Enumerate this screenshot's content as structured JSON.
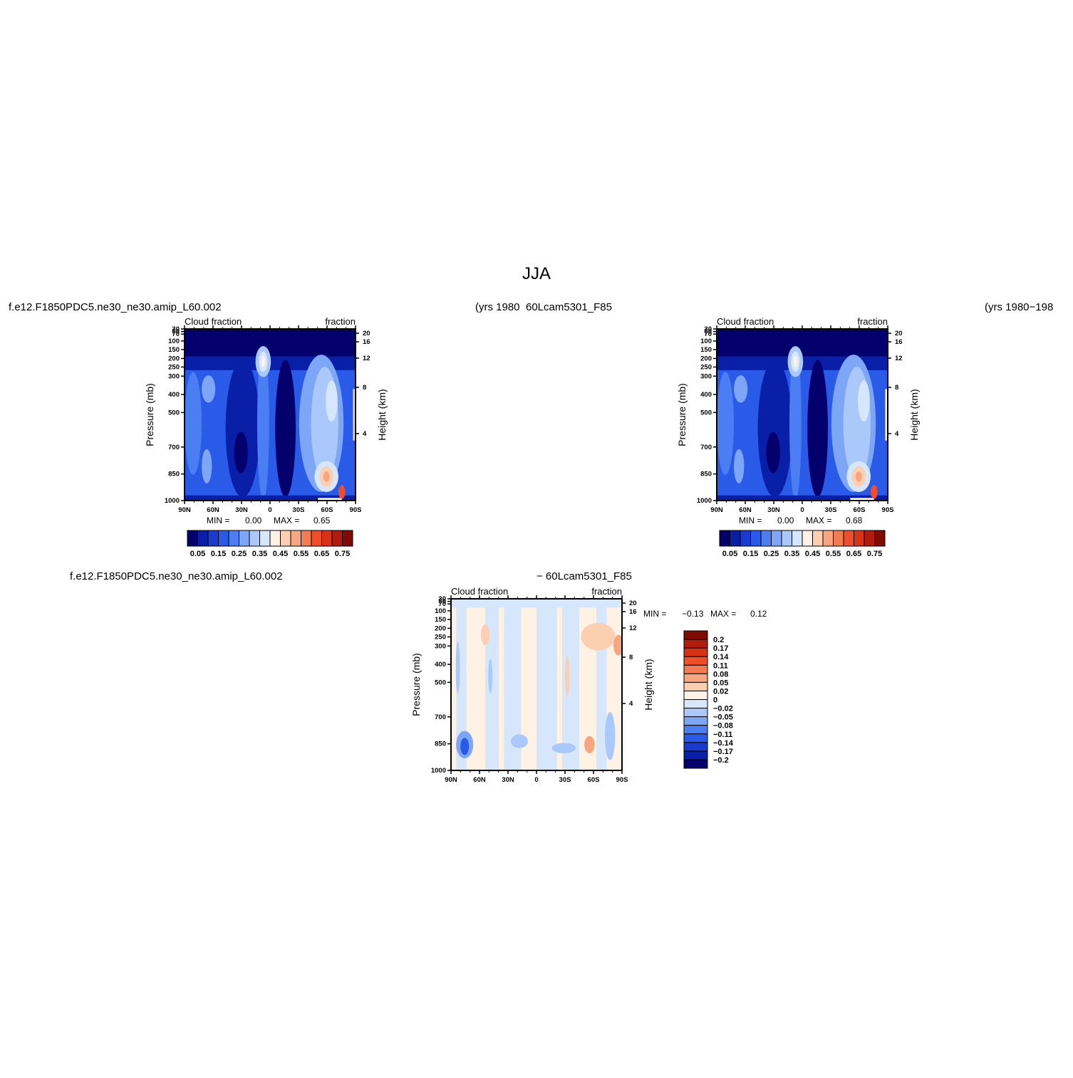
{
  "figure": {
    "title": "JJA",
    "case_label": "f.e12.F1850PDC5.ne30_ne30.amip_L60.002",
    "years_label_1": "(yrs 1980",
    "model_label": "60Lcam5301_F85",
    "years_label_2": "(yrs 1980−198",
    "diff_case_label": "f.e12.F1850PDC5.ne30_ne30.amip_L60.002",
    "diff_model_label": "− 60Lcam5301_F85"
  },
  "colors": {
    "sequential": [
      "#03006e",
      "#0a1fa8",
      "#1b3bd0",
      "#2a5ae8",
      "#4a7ef2",
      "#7da6f6",
      "#aac8f9",
      "#d6e6fb",
      "#fff1e3",
      "#fbcfb0",
      "#f7a67f",
      "#f37b52",
      "#ee4f2a",
      "#d83217",
      "#b11c0d",
      "#800a04"
    ],
    "diverging": [
      "#03006e",
      "#0a1fa8",
      "#1b3bd0",
      "#2a5ae8",
      "#4a7ef2",
      "#7da6f6",
      "#aac8f9",
      "#d6e6fb",
      "#fff1e3",
      "#fbcfb0",
      "#f7a67f",
      "#f37b52",
      "#ee4f2a",
      "#d83217",
      "#b11c0d",
      "#800a04"
    ]
  },
  "chart_data": [
    {
      "type": "heatmap",
      "id": "panel1",
      "title_left": "Cloud fraction",
      "title_right": "fraction",
      "xlabel": "",
      "ylabel": "Pressure (mb)",
      "ylabel_right": "Height (km)",
      "xticks": [
        "90N",
        "60N",
        "30N",
        "0",
        "30S",
        "60S",
        "90S"
      ],
      "yticks": [
        "30",
        "50",
        "70",
        "100",
        "150",
        "200",
        "250",
        "300",
        "400",
        "500",
        "700",
        "850",
        "1000"
      ],
      "yticks_right": [
        "20",
        "16",
        "12",
        "8",
        "4"
      ],
      "min_label": "MIN =",
      "min_value": "0.00",
      "max_label": "MAX =",
      "max_value": "0.65",
      "colorbar_labels": [
        "0.05",
        "0.15",
        "0.25",
        "0.35",
        "0.45",
        "0.55",
        "0.65",
        "0.75"
      ]
    },
    {
      "type": "heatmap",
      "id": "panel2",
      "title_left": "Cloud fraction",
      "title_right": "fraction",
      "xlabel": "",
      "ylabel": "Pressure (mb)",
      "ylabel_right": "Height (km)",
      "xticks": [
        "90N",
        "60N",
        "30N",
        "0",
        "30S",
        "60S",
        "90S"
      ],
      "yticks": [
        "30",
        "50",
        "70",
        "100",
        "150",
        "200",
        "250",
        "300",
        "400",
        "500",
        "700",
        "850",
        "1000"
      ],
      "yticks_right": [
        "20",
        "16",
        "12",
        "8",
        "4"
      ],
      "min_label": "MIN =",
      "min_value": "0.00",
      "max_label": "MAX =",
      "max_value": "0.68",
      "colorbar_labels": [
        "0.05",
        "0.15",
        "0.25",
        "0.35",
        "0.45",
        "0.55",
        "0.65",
        "0.75"
      ]
    },
    {
      "type": "heatmap",
      "id": "panel3",
      "title_left": "Cloud fraction",
      "title_right": "fraction",
      "xlabel": "",
      "ylabel": "Pressure (mb)",
      "ylabel_right": "Height (km)",
      "xticks": [
        "90N",
        "60N",
        "30N",
        "0",
        "30S",
        "60S",
        "90S"
      ],
      "yticks": [
        "30",
        "50",
        "70",
        "100",
        "150",
        "200",
        "250",
        "300",
        "400",
        "500",
        "700",
        "850",
        "1000"
      ],
      "yticks_right": [
        "20",
        "16",
        "12",
        "8",
        "4"
      ],
      "min_label": "MIN =",
      "min_value": "−0.13",
      "max_label": "MAX =",
      "max_value": "0.12",
      "colorbar_labels": [
        "0.2",
        "0.17",
        "0.14",
        "0.11",
        "0.08",
        "0.05",
        "0.02",
        "0",
        "−0.02",
        "−0.05",
        "−0.08",
        "−0.11",
        "−0.14",
        "−0.17",
        "−0.2"
      ]
    }
  ]
}
